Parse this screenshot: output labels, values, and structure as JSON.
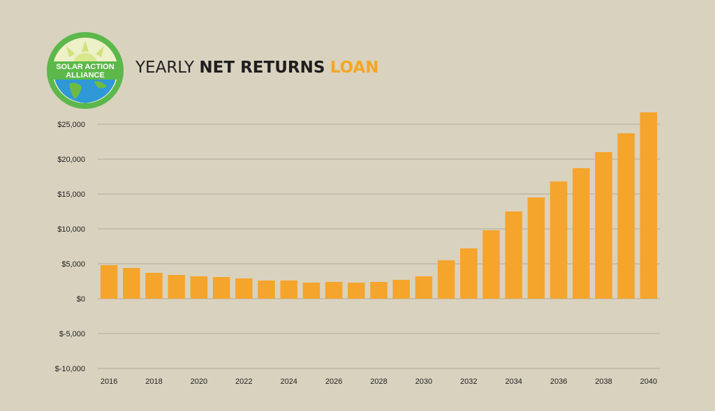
{
  "logo": {
    "line1": "SOLAR ACTION",
    "line2": "ALLIANCE"
  },
  "title": {
    "part1": "YEARLY",
    "part2": "NET RETURNS",
    "part3": "LOAN"
  },
  "colors": {
    "bar": "#f5a42c",
    "accent": "#f5a623",
    "grid": "#b2aa98",
    "background": "#d9d2bf",
    "logo_green": "#5cb84a",
    "logo_blue": "#2f98d6"
  },
  "chart_data": {
    "type": "bar",
    "title": "YEARLY NET RETURNS LOAN",
    "xlabel": "",
    "ylabel": "",
    "categories": [
      "2016",
      "2017",
      "2018",
      "2019",
      "2020",
      "2021",
      "2022",
      "2023",
      "2024",
      "2025",
      "2026",
      "2027",
      "2028",
      "2029",
      "2030",
      "2031",
      "2032",
      "2033",
      "2034",
      "2035",
      "2036",
      "2037",
      "2038",
      "2039",
      "2040"
    ],
    "values": [
      4800,
      4400,
      3700,
      3400,
      3200,
      3100,
      2900,
      2600,
      2600,
      2300,
      2400,
      2300,
      2400,
      2700,
      3200,
      5500,
      7200,
      9800,
      12500,
      14500,
      16800,
      18700,
      21000,
      23700,
      26700
    ],
    "x_tick_labels": [
      "2016",
      "2018",
      "2020",
      "2022",
      "2024",
      "2026",
      "2028",
      "2030",
      "2032",
      "2034",
      "2036",
      "2038",
      "2040"
    ],
    "y_ticks": [
      -10000,
      -5000,
      0,
      5000,
      10000,
      15000,
      20000,
      25000
    ],
    "y_tick_labels": [
      "$-10,000",
      "$-5,000",
      "$0",
      "$5,000",
      "$10,000",
      "$15,000",
      "$20,000",
      "$25,000"
    ],
    "ylim": [
      -10000,
      25000
    ],
    "grid": true,
    "legend": "none"
  }
}
